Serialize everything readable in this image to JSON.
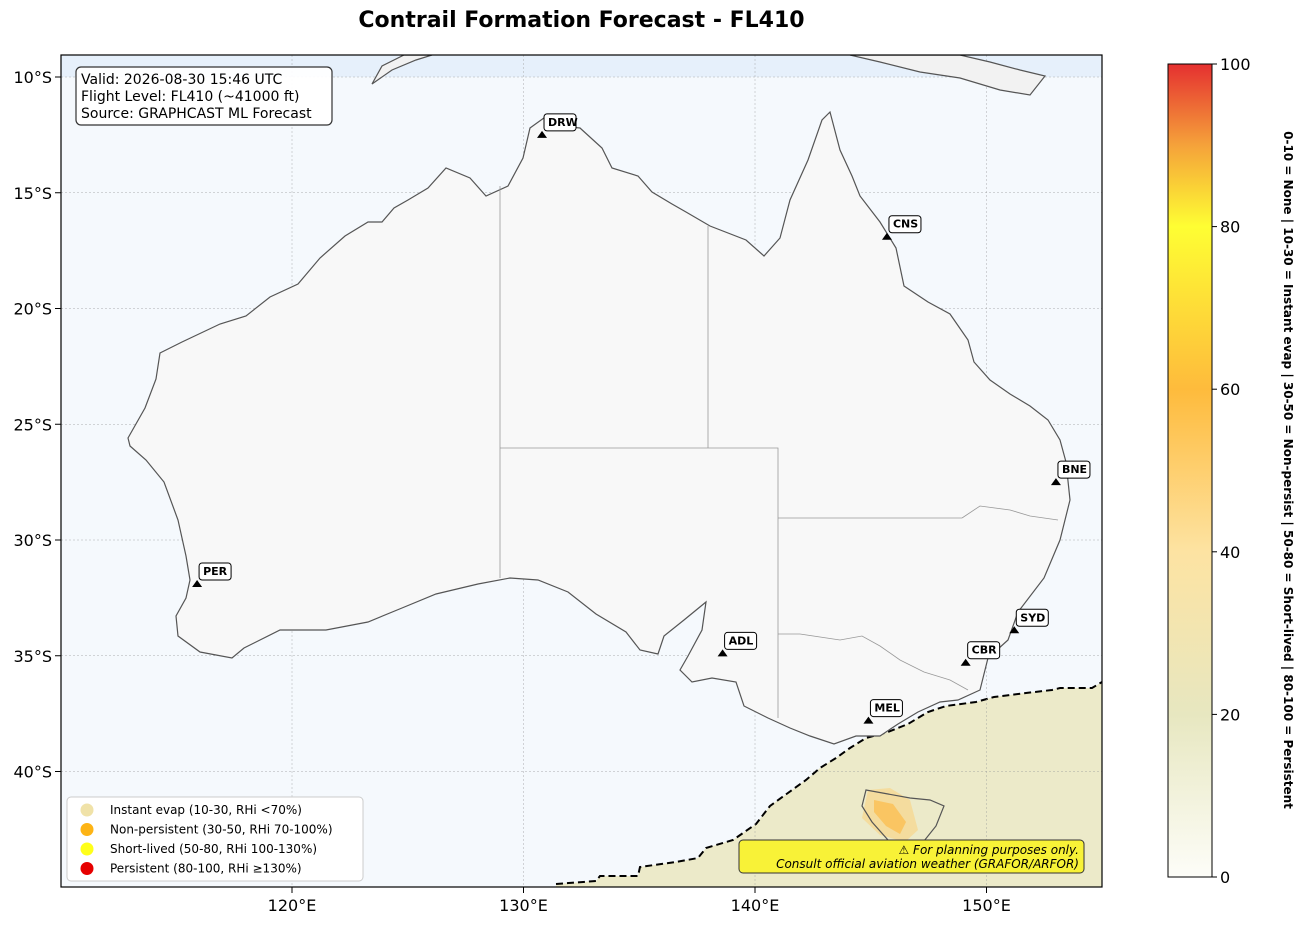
{
  "title": "Contrail Formation Forecast - FL410",
  "info_box": {
    "valid": "Valid: 2026-08-30 15:46 UTC",
    "flight_level": "Flight Level: FL410 (~41000 ft)",
    "source": "Source: GRAPHCAST ML Forecast"
  },
  "map": {
    "lat_ticks": [
      {
        "lat": -10,
        "label": "10°S"
      },
      {
        "lat": -15,
        "label": "15°S"
      },
      {
        "lat": -20,
        "label": "20°S"
      },
      {
        "lat": -25,
        "label": "25°S"
      },
      {
        "lat": -30,
        "label": "30°S"
      },
      {
        "lat": -35,
        "label": "35°S"
      },
      {
        "lat": -40,
        "label": "40°S"
      }
    ],
    "lon_ticks": [
      {
        "lon": 120,
        "label": "120°E"
      },
      {
        "lon": 130,
        "label": "130°E"
      },
      {
        "lon": 140,
        "label": "140°E"
      },
      {
        "lon": 150,
        "label": "150°E"
      }
    ],
    "extent": {
      "lon_min": 110,
      "lon_max": 155,
      "lat_min": -45,
      "lat_max": -9
    }
  },
  "cities": [
    {
      "code": "DRW",
      "lon": 130.8,
      "lat": -12.5
    },
    {
      "code": "CNS",
      "lon": 145.7,
      "lat": -16.9
    },
    {
      "code": "BNE",
      "lon": 153.0,
      "lat": -27.5
    },
    {
      "code": "PER",
      "lon": 115.9,
      "lat": -31.9
    },
    {
      "code": "ADL",
      "lon": 138.6,
      "lat": -34.9
    },
    {
      "code": "SYD",
      "lon": 151.2,
      "lat": -33.9
    },
    {
      "code": "CBR",
      "lon": 149.1,
      "lat": -35.3
    },
    {
      "code": "MEL",
      "lon": 144.9,
      "lat": -37.8
    }
  ],
  "legend": [
    {
      "label": "Instant evap (10-30, RHi <70%)",
      "color": "#f0e2a8"
    },
    {
      "label": "Non-persistent (30-50, RHi 70-100%)",
      "color": "#fdb415"
    },
    {
      "label": "Short-lived (50-80, RHi 100-130%)",
      "color": "#ffff1a"
    },
    {
      "label": "Persistent (80-100, RHi ≥130%)",
      "color": "#e60000"
    }
  ],
  "warning": {
    "line1": "⚠ For planning purposes only.",
    "line2": "Consult official aviation weather (GRAFOR/ARFOR)"
  },
  "colorbar": {
    "ticks": [
      "0",
      "20",
      "40",
      "60",
      "80",
      "100"
    ],
    "label": "0-10 = None  |  10-30 = Instant evap  |  30-50 = Non-persist  |  50-80 = Short-lived  |  80-100 = Persistent",
    "colors": [
      "#fdfdf8",
      "#e7e7c0",
      "#fde3a2",
      "#febb3c",
      "#fefe33",
      "#f0883a",
      "#e53030"
    ]
  }
}
